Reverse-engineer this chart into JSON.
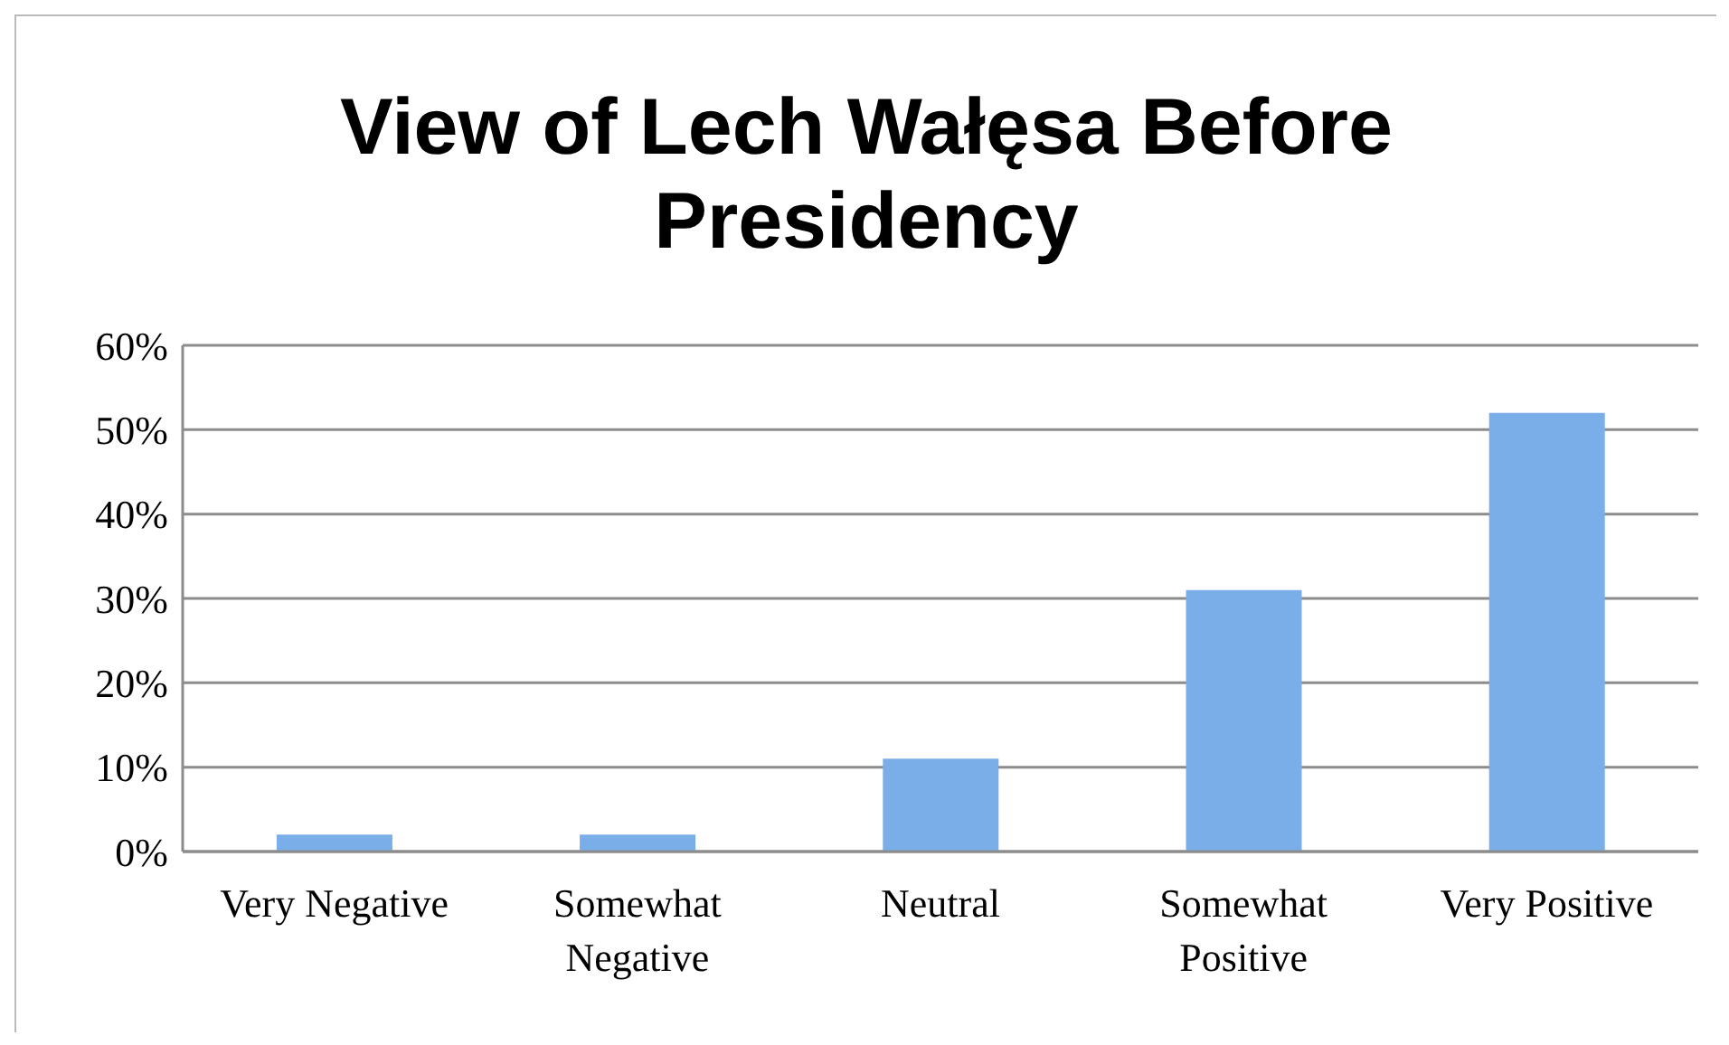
{
  "chart_data": {
    "type": "bar",
    "title": "View of Lech Wałęsa Before Presidency",
    "categories": [
      "Very Negative",
      "Somewhat Negative",
      "Neutral",
      "Somewhat Positive",
      "Very Positive"
    ],
    "values": [
      0.02,
      0.02,
      0.11,
      0.31,
      0.52
    ],
    "color": "#7aaee8",
    "ylim": [
      0,
      0.6
    ],
    "yticks": [
      {
        "value": 0,
        "label": "0%"
      },
      {
        "value": 0.1,
        "label": "10%"
      },
      {
        "value": 0.2,
        "label": "20%"
      },
      {
        "value": 0.3,
        "label": "30%"
      },
      {
        "value": 0.4,
        "label": "40%"
      },
      {
        "value": 0.5,
        "label": "50%"
      },
      {
        "value": 0.6,
        "label": "60%"
      }
    ],
    "grid": "y"
  }
}
